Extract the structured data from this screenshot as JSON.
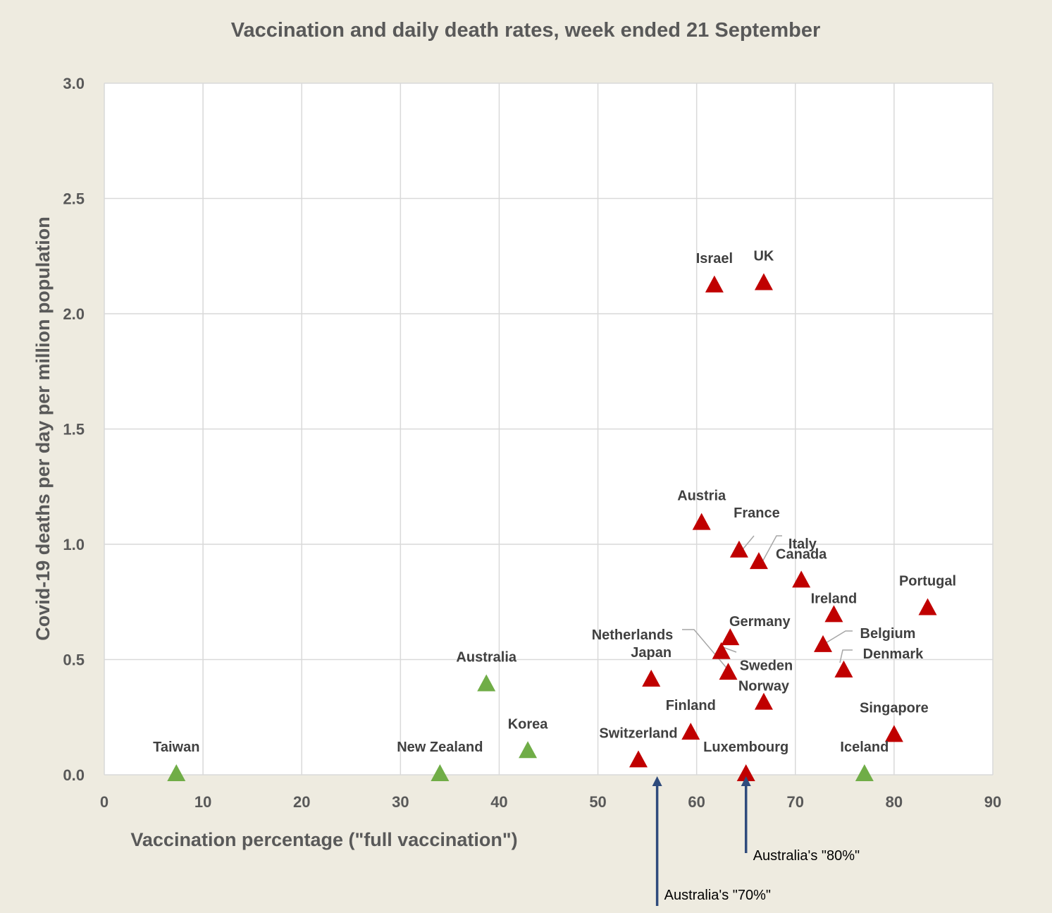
{
  "chart_data": {
    "type": "scatter",
    "title": "Vaccination and daily death rates, week ended 21 September",
    "xlabel": "Vaccination percentage (\"full vaccination\")",
    "ylabel": "Covid-19 deaths per day per million population",
    "xlim": [
      0,
      90
    ],
    "ylim": [
      0,
      3.0
    ],
    "x_ticks": [
      "0",
      "10",
      "20",
      "30",
      "40",
      "50",
      "60",
      "70",
      "80",
      "90"
    ],
    "y_ticks": [
      "0.0",
      "0.5",
      "1.0",
      "1.5",
      "2.0",
      "2.5",
      "3.0"
    ],
    "grid": true,
    "colors": {
      "high": "#c00000",
      "low": "#70ad47",
      "arrow": "#2f4b7c"
    },
    "points": [
      {
        "label": "Israel",
        "x": 61.8,
        "y": 2.12,
        "group": "high"
      },
      {
        "label": "UK",
        "x": 66.8,
        "y": 2.13,
        "group": "high"
      },
      {
        "label": "Austria",
        "x": 60.5,
        "y": 1.09,
        "group": "high"
      },
      {
        "label": "France",
        "x": 64.3,
        "y": 0.97,
        "group": "high"
      },
      {
        "label": "Italy",
        "x": 66.3,
        "y": 0.92,
        "group": "high"
      },
      {
        "label": "Canada",
        "x": 70.6,
        "y": 0.84,
        "group": "high"
      },
      {
        "label": "Portugal",
        "x": 83.4,
        "y": 0.72,
        "group": "high"
      },
      {
        "label": "Ireland",
        "x": 73.9,
        "y": 0.69,
        "group": "high"
      },
      {
        "label": "Germany",
        "x": 63.4,
        "y": 0.59,
        "group": "high"
      },
      {
        "label": "Belgium",
        "x": 72.8,
        "y": 0.56,
        "group": "high"
      },
      {
        "label": "Netherlands",
        "x": 63.2,
        "y": 0.44,
        "group": "high"
      },
      {
        "label": "Sweden",
        "x": 62.5,
        "y": 0.53,
        "group": "high"
      },
      {
        "label": "Denmark",
        "x": 74.9,
        "y": 0.45,
        "group": "high"
      },
      {
        "label": "Japan",
        "x": 55.4,
        "y": 0.41,
        "group": "high"
      },
      {
        "label": "Norway",
        "x": 66.8,
        "y": 0.31,
        "group": "high"
      },
      {
        "label": "Finland",
        "x": 59.4,
        "y": 0.18,
        "group": "high"
      },
      {
        "label": "Singapore",
        "x": 80.0,
        "y": 0.17,
        "group": "high"
      },
      {
        "label": "Switzerland",
        "x": 54.1,
        "y": 0.06,
        "group": "high"
      },
      {
        "label": "Luxembourg",
        "x": 65.0,
        "y": 0.0,
        "group": "high"
      },
      {
        "label": "Australia",
        "x": 38.7,
        "y": 0.39,
        "group": "low"
      },
      {
        "label": "Korea",
        "x": 42.9,
        "y": 0.1,
        "group": "low"
      },
      {
        "label": "Taiwan",
        "x": 7.3,
        "y": 0.0,
        "group": "low"
      },
      {
        "label": "New Zealand",
        "x": 34.0,
        "y": 0.0,
        "group": "low"
      },
      {
        "label": "Iceland",
        "x": 77.0,
        "y": 0.0,
        "group": "low"
      }
    ],
    "annotations": [
      {
        "text": "Australia's \"70%\"",
        "x": 56
      },
      {
        "text": "Australia's \"80%\"",
        "x": 65
      }
    ]
  }
}
